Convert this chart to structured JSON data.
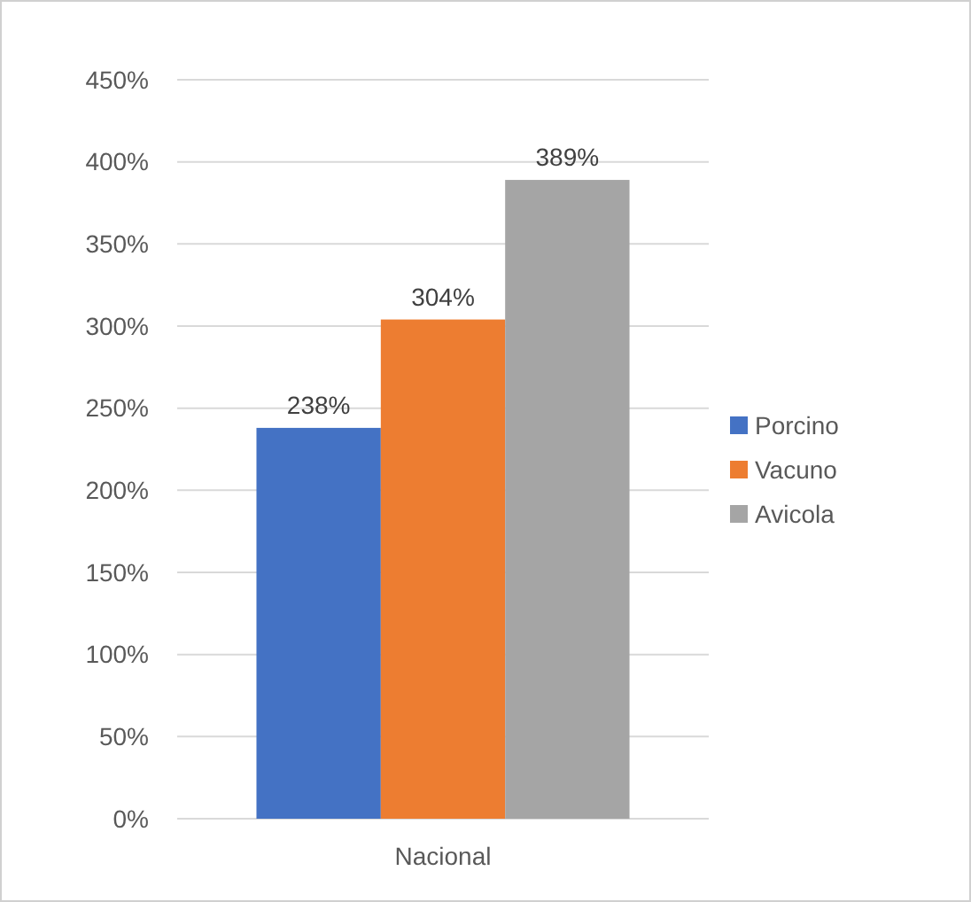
{
  "chart_data": {
    "type": "bar",
    "categories": [
      "Nacional"
    ],
    "series": [
      {
        "name": "Porcino",
        "color": "#4472c4",
        "values": [
          238
        ],
        "value_labels": [
          "238%"
        ]
      },
      {
        "name": "Vacuno",
        "color": "#ed7d31",
        "values": [
          304
        ],
        "value_labels": [
          "304%"
        ]
      },
      {
        "name": "Avicola",
        "color": "#a5a5a5",
        "values": [
          389
        ],
        "value_labels": [
          "389%"
        ]
      }
    ],
    "ylim": [
      0,
      450
    ],
    "yticks": [
      {
        "value": 0,
        "label": "0%"
      },
      {
        "value": 50,
        "label": "50%"
      },
      {
        "value": 100,
        "label": "100%"
      },
      {
        "value": 150,
        "label": "150%"
      },
      {
        "value": 200,
        "label": "200%"
      },
      {
        "value": 250,
        "label": "250%"
      },
      {
        "value": 300,
        "label": "300%"
      },
      {
        "value": 350,
        "label": "350%"
      },
      {
        "value": 400,
        "label": "400%"
      },
      {
        "value": 450,
        "label": "450%"
      }
    ],
    "grid": "y",
    "legend": "right"
  }
}
